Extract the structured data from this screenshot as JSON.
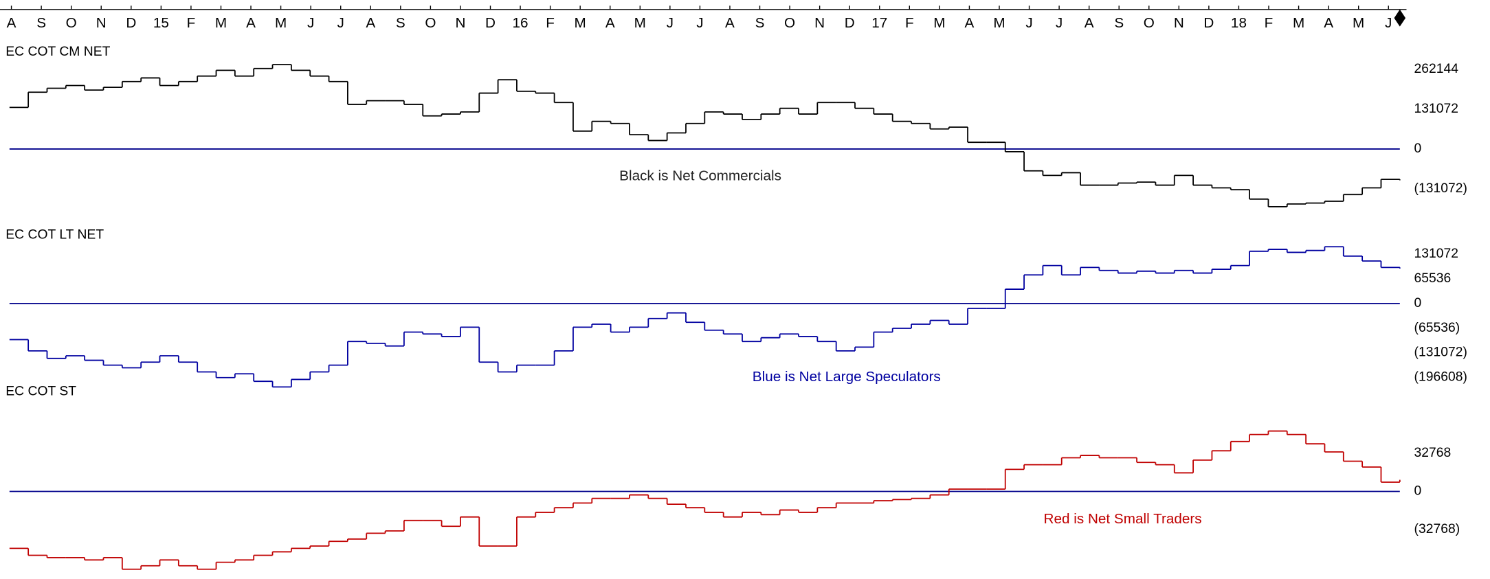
{
  "x_axis": {
    "labels": [
      "A",
      "S",
      "O",
      "N",
      "D",
      "15",
      "F",
      "M",
      "A",
      "M",
      "J",
      "J",
      "A",
      "S",
      "O",
      "N",
      "D",
      "16",
      "F",
      "M",
      "A",
      "M",
      "J",
      "J",
      "A",
      "S",
      "O",
      "N",
      "D",
      "17",
      "F",
      "M",
      "A",
      "M",
      "J",
      "J",
      "A",
      "S",
      "O",
      "N",
      "D",
      "18",
      "F",
      "M",
      "A",
      "M",
      "J"
    ]
  },
  "chart_data": [
    {
      "type": "step",
      "title": "EC COT CM NET",
      "annotation": "Black is Net Commercials",
      "color": "#000000",
      "zero_line": 0,
      "zero_color": "#00008b",
      "ylim": [
        -212000,
        350000
      ],
      "yticks": [
        262144,
        131072,
        0,
        {
          "value": -131072,
          "label": "(131072)"
        }
      ],
      "values": [
        137000,
        187000,
        200000,
        209000,
        194000,
        203000,
        222000,
        234000,
        209000,
        222000,
        240000,
        259000,
        240000,
        265000,
        278000,
        259000,
        240000,
        222000,
        147000,
        159000,
        159000,
        147000,
        109000,
        115000,
        122000,
        184000,
        228000,
        190000,
        184000,
        153000,
        59000,
        91000,
        84000,
        47000,
        28000,
        53000,
        84000,
        122000,
        115000,
        97000,
        115000,
        134000,
        115000,
        153000,
        153000,
        134000,
        115000,
        91000,
        84000,
        66000,
        72000,
        22000,
        22000,
        -9000,
        -72000,
        -87000,
        -78000,
        -119000,
        -119000,
        -112000,
        -109000,
        -119000,
        -87000,
        -119000,
        -128000,
        -134000,
        -165000,
        -190000,
        -181000,
        -178000,
        -172000,
        -150000,
        -128000,
        -100000,
        -103000
      ]
    },
    {
      "type": "step",
      "title": "EC COT LT NET",
      "annotation": "Blue is Net Large Speculators",
      "color": "#0000a0",
      "zero_line": 0,
      "zero_color": "#00008b",
      "ylim": [
        -227000,
        164000
      ],
      "yticks": [
        131072,
        65536,
        0,
        {
          "value": -65536,
          "label": "(65536)"
        },
        {
          "value": -131072,
          "label": "(131072)"
        },
        {
          "value": -196608,
          "label": "(196608)"
        }
      ],
      "values": [
        -96000,
        -126000,
        -146000,
        -139000,
        -151000,
        -164000,
        -171000,
        -156000,
        -139000,
        -156000,
        -182000,
        -197000,
        -187000,
        -207000,
        -222000,
        -202000,
        -182000,
        -164000,
        -101000,
        -106000,
        -113000,
        -76000,
        -81000,
        -88000,
        -63000,
        -156000,
        -182000,
        -164000,
        -164000,
        -126000,
        -63000,
        -55000,
        -76000,
        -63000,
        -40000,
        -25000,
        -50000,
        -71000,
        -81000,
        -101000,
        -91000,
        -81000,
        -88000,
        -101000,
        -126000,
        -116000,
        -76000,
        -66000,
        -55000,
        -45000,
        -55000,
        -13000,
        -13000,
        38000,
        76000,
        101000,
        76000,
        96000,
        88000,
        81000,
        86000,
        81000,
        88000,
        81000,
        91000,
        101000,
        139000,
        144000,
        136000,
        141000,
        151000,
        126000,
        113000,
        96000,
        93000
      ]
    },
    {
      "type": "step",
      "title": "EC COT ST",
      "annotation": "Red is Net Small Traders",
      "color": "#c00000",
      "zero_line": 0,
      "zero_color": "#00008b",
      "ylim": [
        -75000,
        72000
      ],
      "yticks": [
        32768,
        0,
        {
          "value": -32768,
          "label": "(32768)"
        }
      ],
      "values": [
        -49000,
        -55000,
        -57000,
        -57000,
        -59000,
        -57000,
        -67000,
        -64000,
        -59000,
        -64000,
        -67000,
        -61000,
        -59000,
        -55000,
        -52000,
        -49000,
        -47000,
        -43000,
        -41000,
        -36000,
        -34000,
        -25000,
        -25000,
        -30000,
        -22000,
        -47000,
        -47000,
        -22000,
        -18000,
        -14000,
        -10000,
        -6000,
        -6000,
        -3000,
        -6000,
        -11000,
        -14000,
        -18000,
        -22000,
        -18000,
        -20000,
        -16000,
        -18000,
        -14000,
        -10000,
        -10000,
        -8000,
        -7000,
        -6000,
        -3000,
        2000,
        2000,
        2000,
        19000,
        23000,
        23000,
        29000,
        31000,
        29000,
        29000,
        25000,
        23000,
        16000,
        27000,
        35000,
        43000,
        49000,
        52000,
        49000,
        41000,
        34000,
        26000,
        21000,
        8000,
        10000
      ]
    }
  ]
}
